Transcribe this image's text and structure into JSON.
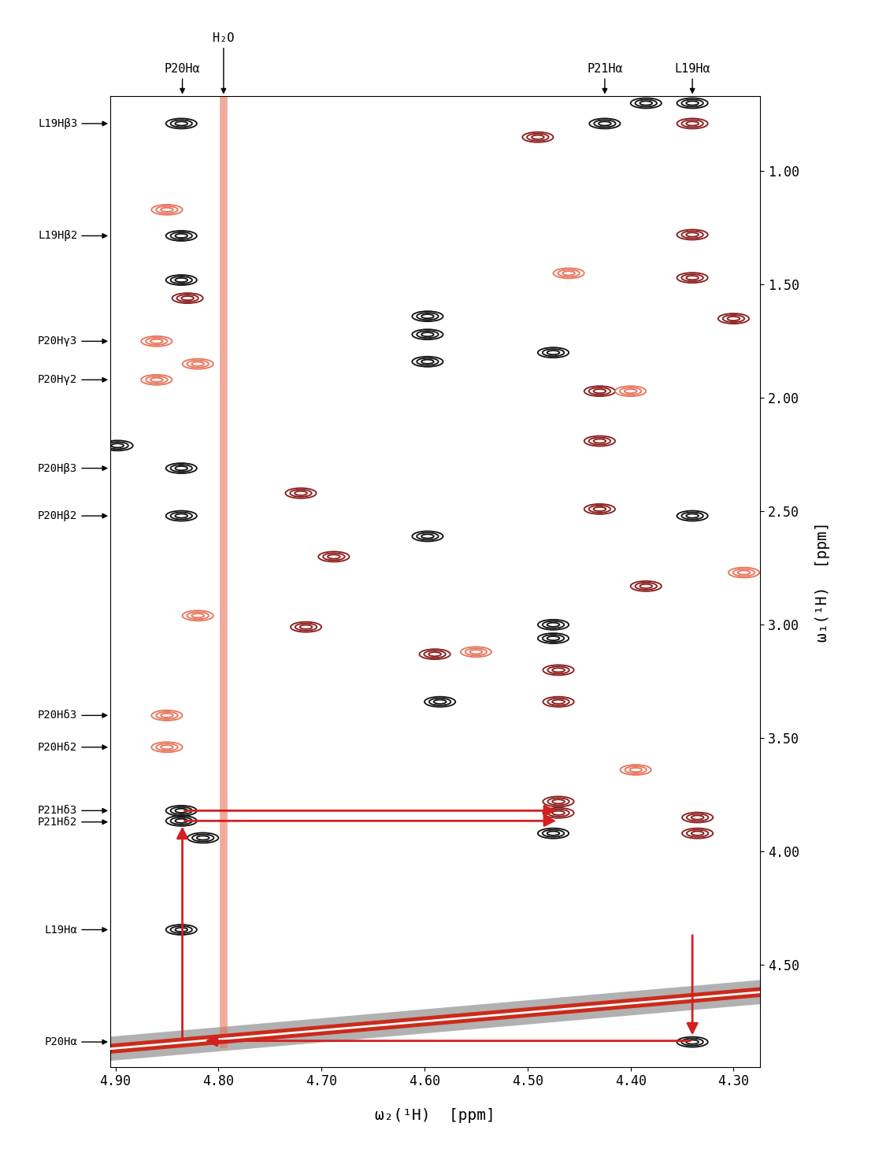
{
  "chart_data": {
    "type": "contour",
    "xlabel": "ω₂(¹H)  [ppm]",
    "ylabel": "ω₁(¹H)  [ppm]",
    "xlim": [
      4.905,
      4.274
    ],
    "ylim": [
      4.95,
      0.67
    ],
    "xticks": [
      {
        "value": 4.9,
        "label": "4.90"
      },
      {
        "value": 4.8,
        "label": "4.80"
      },
      {
        "value": 4.7,
        "label": "4.70"
      },
      {
        "value": 4.6,
        "label": "4.60"
      },
      {
        "value": 4.5,
        "label": "4.50"
      },
      {
        "value": 4.4,
        "label": "4.40"
      },
      {
        "value": 4.3,
        "label": "4.30"
      }
    ],
    "yticks": [
      {
        "value": 1.0,
        "label": "1.00"
      },
      {
        "value": 1.5,
        "label": "1.50"
      },
      {
        "value": 2.0,
        "label": "2.00"
      },
      {
        "value": 2.5,
        "label": "2.50"
      },
      {
        "value": 3.0,
        "label": "3.00"
      },
      {
        "value": 3.5,
        "label": "3.50"
      },
      {
        "value": 4.0,
        "label": "4.00"
      },
      {
        "value": 4.5,
        "label": "4.50"
      }
    ],
    "series": [
      {
        "type": "scatter",
        "color": "#111111",
        "x": [
          4.836,
          4.836,
          4.836,
          4.836,
          4.836,
          4.836,
          4.836,
          4.836,
          4.815,
          4.597,
          4.597,
          4.597,
          4.597,
          4.585,
          4.475,
          4.475,
          4.475,
          4.475,
          4.425,
          4.385,
          4.34,
          4.34,
          4.34,
          4.898
        ],
        "values": [
          0.79,
          1.285,
          1.48,
          2.31,
          2.52,
          3.82,
          3.865,
          4.345,
          3.94,
          1.64,
          1.72,
          1.84,
          2.61,
          3.34,
          1.8,
          3.0,
          3.06,
          3.92,
          0.79,
          0.7,
          0.7,
          2.52,
          4.84,
          2.21
        ]
      },
      {
        "type": "scatter",
        "color": "#8b1a1a",
        "x": [
          4.83,
          4.72,
          4.688,
          4.715,
          4.59,
          4.47,
          4.47,
          4.47,
          4.47,
          4.43,
          4.43,
          4.43,
          4.385,
          4.49,
          4.34,
          4.34,
          4.34,
          4.335,
          4.335,
          4.3
        ],
        "values": [
          1.56,
          2.42,
          2.7,
          3.01,
          3.13,
          3.2,
          3.34,
          3.78,
          3.83,
          1.97,
          2.19,
          2.49,
          2.83,
          0.85,
          0.79,
          1.28,
          1.47,
          3.85,
          3.92,
          1.65
        ]
      },
      {
        "type": "scatter",
        "color": "#e8735a",
        "x": [
          4.85,
          4.86,
          4.86,
          4.85,
          4.85,
          4.82,
          4.82,
          4.46,
          4.4,
          4.29,
          4.55,
          4.395
        ],
        "values": [
          1.17,
          1.75,
          1.92,
          3.4,
          3.54,
          1.85,
          2.96,
          1.45,
          1.97,
          2.77,
          3.12,
          3.64
        ]
      },
      {
        "type": "line",
        "color": "#cc2a1a",
        "x": [
          4.905,
          4.274
        ],
        "values": [
          4.87,
          4.62
        ]
      },
      {
        "type": "line",
        "color": "#e8735a",
        "x": [
          4.795,
          4.795
        ],
        "values": [
          0.67,
          4.85
        ]
      }
    ],
    "left_labels": [
      {
        "text": "L19Hβ3",
        "y": 0.79
      },
      {
        "text": "L19Hβ2",
        "y": 1.285
      },
      {
        "text": "P20Hγ3",
        "y": 1.75
      },
      {
        "text": "P20Hγ2",
        "y": 1.92
      },
      {
        "text": "P20Hβ3",
        "y": 2.31
      },
      {
        "text": "P20Hβ2",
        "y": 2.52
      },
      {
        "text": "P20Hδ3",
        "y": 3.4
      },
      {
        "text": "P20Hδ2",
        "y": 3.54
      },
      {
        "text": "P21Hδ3",
        "y": 3.82
      },
      {
        "text": "P21Hδ2",
        "y": 3.87
      },
      {
        "text": "L19Hα",
        "y": 4.345
      },
      {
        "text": "P20Hα",
        "y": 4.84
      }
    ],
    "top_labels": [
      {
        "text": "P20Hα",
        "x": 4.835
      },
      {
        "text": "H₂O",
        "x": 4.795
      },
      {
        "text": "P21Hα",
        "x": 4.425
      },
      {
        "text": "L19Hα",
        "x": 4.34
      }
    ],
    "connections": [
      {
        "x": [
          4.835,
          4.835
        ],
        "values": [
          4.84,
          3.88
        ]
      },
      {
        "x": [
          4.835,
          4.47
        ],
        "values": [
          3.82,
          3.82
        ]
      },
      {
        "x": [
          4.835,
          4.47
        ],
        "values": [
          3.865,
          3.865
        ]
      },
      {
        "x": [
          4.34,
          4.34
        ],
        "values": [
          4.36,
          4.82
        ]
      },
      {
        "x": [
          4.34,
          4.815
        ],
        "values": [
          4.835,
          4.835
        ]
      }
    ]
  }
}
